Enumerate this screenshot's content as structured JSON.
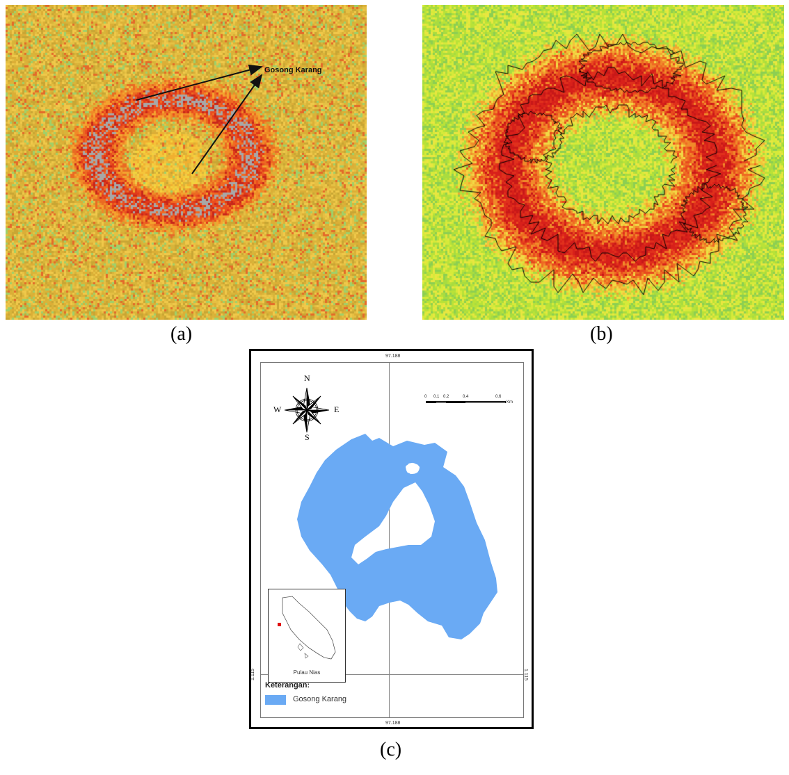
{
  "panels": {
    "a": {
      "caption": "(a)",
      "annotation": "Gosong Karang",
      "colors": {
        "background": "#d9b53a",
        "reef": "#e8401c",
        "gray": "#a7a7a7"
      }
    },
    "b": {
      "caption": "(b)",
      "colors": {
        "background": "#b9e238",
        "reef": "#e6301a",
        "outline": "#000000"
      }
    },
    "c": {
      "caption": "(c)",
      "longitude_top": "97.188",
      "longitude_bottom": "97.188",
      "latitude_left": "1.115",
      "latitude_right": "1.115",
      "compass": {
        "n": "N",
        "s": "S",
        "e": "E",
        "w": "W"
      },
      "scale_ticks": [
        "0",
        "0.1",
        "0.2",
        "0.4",
        "0.6"
      ],
      "scale_unit": "Km",
      "legend_title": "Keterangan:",
      "legend_label": "Gosong Karang",
      "legend_color": "#6aaaf4",
      "inset_label": "Pulau Nias",
      "inset_marker_color": "#e01010"
    }
  }
}
